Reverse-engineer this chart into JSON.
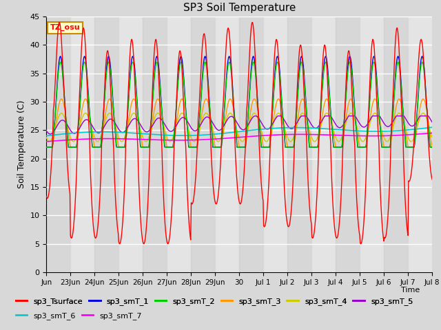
{
  "title": "SP3 Soil Temperature",
  "xlabel": "Time",
  "ylabel": "Soil Temperature (C)",
  "ylim": [
    0,
    45
  ],
  "yticks": [
    0,
    5,
    10,
    15,
    20,
    25,
    30,
    35,
    40,
    45
  ],
  "tz_label": "TZ_osu",
  "series_colors": {
    "sp3_Tsurface": "#ff0000",
    "sp3_smT_1": "#0000dd",
    "sp3_smT_2": "#00cc00",
    "sp3_smT_3": "#ff9900",
    "sp3_smT_4": "#cccc00",
    "sp3_smT_5": "#9900cc",
    "sp3_smT_6": "#00cccc",
    "sp3_smT_7": "#ff00ff"
  },
  "background_color": "#d8d8d8",
  "plot_bg_color": "#e8e8e8",
  "x_tick_labels": [
    "Jun",
    "23Jun",
    "24Jun",
    "25Jun",
    "26Jun",
    "27Jun",
    "28Jun",
    "29Jun",
    "30",
    "Jul 1",
    "Jul 2",
    "Jul 3",
    "Jul 4",
    "Jul 5",
    "Jul 6",
    "Jul 7",
    "Jul 8"
  ]
}
